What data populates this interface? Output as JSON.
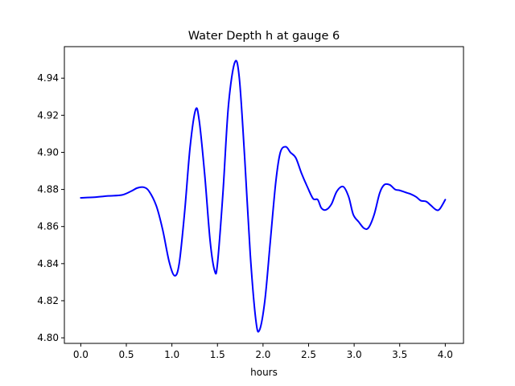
{
  "chart_data": {
    "type": "line",
    "title": "Water Depth h at gauge 6",
    "xlabel": "hours",
    "ylabel": "",
    "xlim": [
      -0.18,
      4.2
    ],
    "ylim": [
      4.797,
      4.957
    ],
    "xticks": [
      0.0,
      0.5,
      1.0,
      1.5,
      2.0,
      2.5,
      3.0,
      3.5,
      4.0
    ],
    "xtick_labels": [
      "0.0",
      "0.5",
      "1.0",
      "1.5",
      "2.0",
      "2.5",
      "3.0",
      "3.5",
      "4.0"
    ],
    "yticks": [
      4.8,
      4.82,
      4.84,
      4.86,
      4.88,
      4.9,
      4.92,
      4.94
    ],
    "ytick_labels": [
      "4.80",
      "4.82",
      "4.84",
      "4.86",
      "4.88",
      "4.90",
      "4.92",
      "4.94"
    ],
    "grid": false,
    "legend": "none",
    "series": [
      {
        "color": "#0000ff",
        "x": [
          0.0,
          0.15,
          0.3,
          0.45,
          0.55,
          0.62,
          0.69,
          0.75,
          0.83,
          0.9,
          0.97,
          1.03,
          1.08,
          1.14,
          1.2,
          1.26,
          1.3,
          1.36,
          1.42,
          1.47,
          1.5,
          1.56,
          1.62,
          1.69,
          1.74,
          1.8,
          1.86,
          1.92,
          1.96,
          2.02,
          2.08,
          2.14,
          2.19,
          2.25,
          2.3,
          2.36,
          2.42,
          2.49,
          2.55,
          2.6,
          2.64,
          2.69,
          2.75,
          2.81,
          2.88,
          2.94,
          2.99,
          3.05,
          3.11,
          3.16,
          3.22,
          3.28,
          3.33,
          3.39,
          3.45,
          3.5,
          3.56,
          3.62,
          3.68,
          3.73,
          3.79,
          3.84,
          3.9,
          3.94,
          4.0
        ],
        "y": [
          4.8755,
          4.8758,
          4.8765,
          4.877,
          4.879,
          4.8808,
          4.8812,
          4.879,
          4.871,
          4.858,
          4.841,
          4.8335,
          4.84,
          4.868,
          4.903,
          4.923,
          4.917,
          4.888,
          4.852,
          4.836,
          4.84,
          4.878,
          4.925,
          4.9485,
          4.94,
          4.896,
          4.845,
          4.81,
          4.804,
          4.82,
          4.852,
          4.884,
          4.9,
          4.903,
          4.9,
          4.897,
          4.889,
          4.881,
          4.875,
          4.8745,
          4.87,
          4.869,
          4.872,
          4.879,
          4.8815,
          4.876,
          4.8665,
          4.8625,
          4.859,
          4.8595,
          4.8665,
          4.878,
          4.8825,
          4.8825,
          4.88,
          4.8795,
          4.8785,
          4.8775,
          4.876,
          4.874,
          4.8735,
          4.8715,
          4.869,
          4.8695,
          4.8745
        ]
      }
    ]
  }
}
